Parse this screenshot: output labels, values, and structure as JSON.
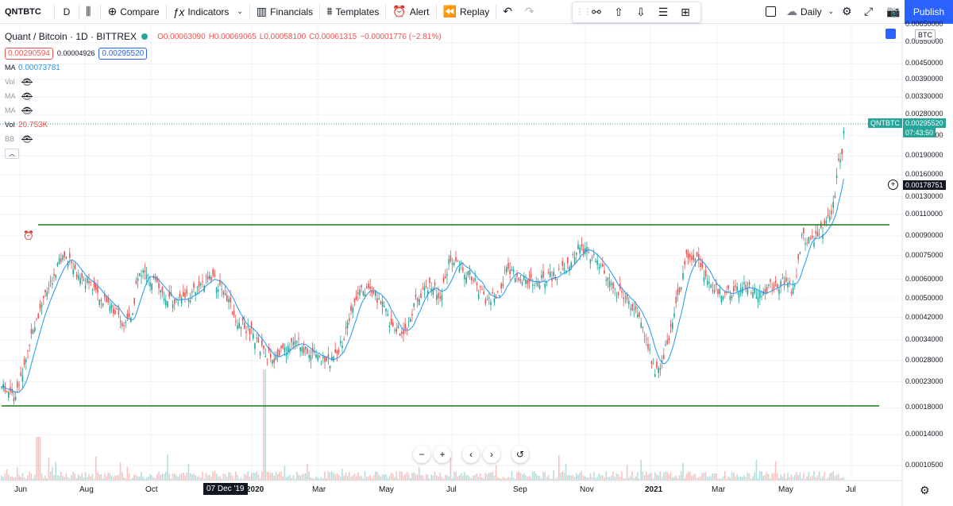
{
  "toolbar": {
    "symbol": "QNTBTC",
    "interval": "D",
    "compare": "Compare",
    "indicators": "Indicators",
    "financials": "Financials",
    "templates": "Templates",
    "alert": "Alert",
    "replay": "Replay",
    "timeframe": "Daily",
    "publish": "Publish"
  },
  "legend": {
    "title": "Quant / Bitcoin · 1D · BITTREX",
    "open": "0.00063090",
    "high": "0.00069065",
    "low": "0.00058100",
    "close": "0.00061315",
    "change": "−0.00001776 (−2.81%)",
    "bid": "0.00290594",
    "spread": "0.00004926",
    "ask": "0.00295520",
    "indicators": [
      {
        "name": "MA",
        "value": "0.00073781",
        "style": "blue",
        "hidden": false
      },
      {
        "name": "Vol",
        "value": "",
        "style": "muted",
        "hidden": true
      },
      {
        "name": "MA",
        "value": "",
        "style": "muted",
        "hidden": true
      },
      {
        "name": "MA",
        "value": "",
        "style": "muted",
        "hidden": true
      },
      {
        "name": "Vol",
        "value": "20.753K",
        "style": "red",
        "hidden": false
      },
      {
        "name": "BB",
        "value": "",
        "style": "muted",
        "hidden": true
      }
    ]
  },
  "price_axis": {
    "currency": "BTC",
    "ticks": [
      "0.00650000",
      "0.00550000",
      "0.00450000",
      "0.00390000",
      "0.00330000",
      "0.00280000",
      "0.00230000",
      "0.00190000",
      "0.00160000",
      "0.00130000",
      "0.00110000",
      "0.00090000",
      "0.00075000",
      "0.00060000",
      "0.00050000",
      "0.00042000",
      "0.00034000",
      "0.00028000",
      "0.00023000",
      "0.00018000",
      "0.00014000",
      "0.00010500"
    ],
    "last_label": "QNTBTC",
    "last_price": "0.00295520",
    "countdown": "07:43:50",
    "cursor_price": "0.00178751"
  },
  "time_axis": {
    "ticks": [
      "Jun",
      "Aug",
      "Oct",
      "2020",
      "Mar",
      "May",
      "Jul",
      "Sep",
      "Nov",
      "2021",
      "Mar",
      "May",
      "Jul"
    ],
    "bold": [
      "2020",
      "2021"
    ],
    "cursor_date": "07 Dec '19"
  },
  "chart_data": {
    "type": "candlestick",
    "symbol": "QNTBTC",
    "scale": "log",
    "x_range": [
      "Jun 2019",
      "Jul 2021"
    ],
    "ylim": [
      0.0001,
      0.0065
    ],
    "support_line": 0.00023,
    "resistance_line": 0.0013,
    "last_close": 0.0029552,
    "ma_last": 0.00073781
  },
  "colors": {
    "up": "#26a69a",
    "down": "#ef5350",
    "ma": "#2196f3",
    "trendline": "#1b7a1b",
    "accent": "#2962ff"
  }
}
